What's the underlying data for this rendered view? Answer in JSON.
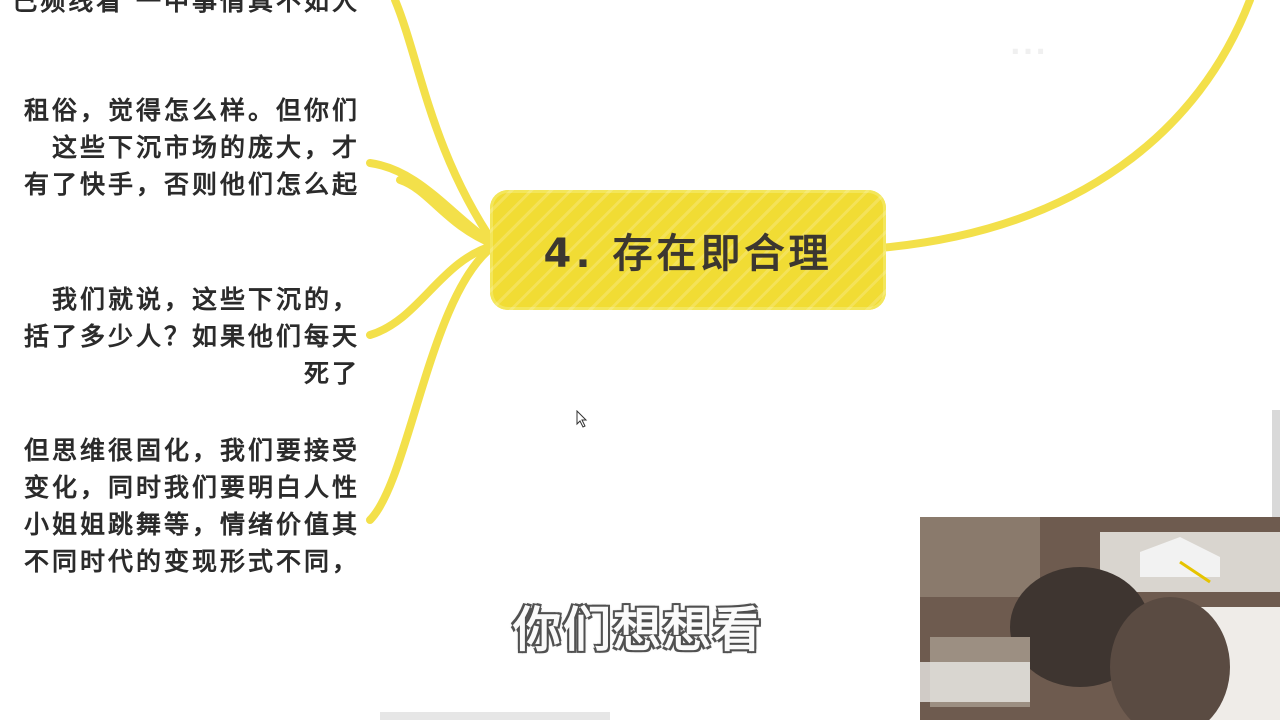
{
  "central_node": {
    "label": "4. 存在即合理"
  },
  "branches": [
    {
      "lines": [
        "己频线看  一中事情真不如人"
      ]
    },
    {
      "lines": [
        "租俗，觉得怎么样。但你们",
        "这些下沉市场的庞大，才",
        "有了快手，否则他们怎么起"
      ]
    },
    {
      "lines": [
        "我们就说，这些下沉的，",
        "括了多少人？如果他们每天",
        "死了"
      ]
    },
    {
      "lines": [
        "但思维很固化，我们要接受",
        "变化，同时我们要明白人性",
        "小姐姐跳舞等，情绪价值其",
        "不同时代的变现形式不同，"
      ]
    }
  ],
  "subtitle": "你们想想看",
  "watermark": "...",
  "colors": {
    "node_fill": "#f1dc34",
    "line": "#f3e04a",
    "text": "#2b2b2b"
  }
}
